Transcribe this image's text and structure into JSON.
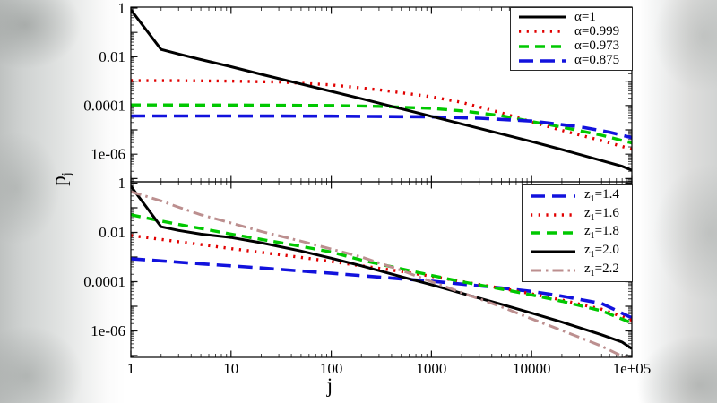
{
  "figure_title": "",
  "axes": {
    "xlabel": "j",
    "ylabel_main": "p",
    "ylabel_sub": "j",
    "x_scale": "log",
    "y_scale": "log",
    "x_tick_labels": [
      "1",
      "10",
      "100",
      "1000",
      "10000",
      "1e+05"
    ],
    "x_tick_values": [
      1,
      10,
      100,
      1000,
      10000,
      100000
    ],
    "y_tick_labels": [
      "1",
      "0.01",
      "0.0001",
      "1e-06"
    ],
    "y_tick_values": [
      1,
      0.01,
      0.0001,
      1e-06
    ]
  },
  "colors": {
    "black": "#000000",
    "red": "#e10000",
    "green": "#00c800",
    "blue": "#1212dd",
    "brown": "#bc8f8f"
  },
  "chart_data": [
    {
      "type": "line",
      "panel": "top",
      "x_scale": "log",
      "y_scale": "log",
      "xlim": [
        1,
        100000
      ],
      "ylim": [
        6e-08,
        1
      ],
      "grid": false,
      "legend_position": "upper right",
      "series": [
        {
          "id": "alpha-1",
          "label": {
            "sym": "α",
            "sub": "",
            "val": "=1"
          },
          "color": "#000000",
          "style": "solid",
          "width": 3,
          "zorder": 4,
          "points": [
            [
              1,
              0.85
            ],
            [
              2,
              0.02
            ],
            [
              3,
              0.013
            ],
            [
              5,
              0.0077
            ],
            [
              10,
              0.0039
            ],
            [
              20,
              0.0019
            ],
            [
              50,
              0.00076
            ],
            [
              100,
              0.00038
            ],
            [
              200,
              0.00019
            ],
            [
              500,
              7.4e-05
            ],
            [
              1000,
              3.6e-05
            ],
            [
              2000,
              1.75e-05
            ],
            [
              5000,
              6.8e-06
            ],
            [
              10000,
              3.3e-06
            ],
            [
              20000,
              1.55e-06
            ],
            [
              50000,
              5.5e-07
            ],
            [
              80000,
              3.2e-07
            ],
            [
              100000,
              2.2e-07
            ]
          ]
        },
        {
          "id": "alpha-0999",
          "label": {
            "sym": "α",
            "sub": "",
            "val": "=0.999"
          },
          "color": "#e10000",
          "style": "dotted",
          "width": 3.4,
          "zorder": 1,
          "points": [
            [
              1,
              0.00105
            ],
            [
              3,
              0.00104
            ],
            [
              10,
              0.001
            ],
            [
              30,
              0.00092
            ],
            [
              100,
              0.0007
            ],
            [
              300,
              0.00044
            ],
            [
              1000,
              0.00023
            ],
            [
              2000,
              0.000135
            ],
            [
              5000,
              5e-05
            ],
            [
              10000,
              2.1e-05
            ],
            [
              20000,
              9.5e-06
            ],
            [
              50000,
              3.6e-06
            ],
            [
              100000,
              1.6e-06
            ]
          ]
        },
        {
          "id": "alpha-0973",
          "label": {
            "sym": "α",
            "sub": "",
            "val": "=0.973"
          },
          "color": "#00c800",
          "style": "dashed",
          "width": 3.4,
          "zorder": 2,
          "points": [
            [
              1,
              0.000105
            ],
            [
              10,
              0.000104
            ],
            [
              100,
              0.0001
            ],
            [
              300,
              9.2e-05
            ],
            [
              1000,
              7.6e-05
            ],
            [
              2000,
              6e-05
            ],
            [
              5000,
              3.8e-05
            ],
            [
              10000,
              2.2e-05
            ],
            [
              20000,
              1.3e-05
            ],
            [
              50000,
              6e-06
            ],
            [
              100000,
              2.9e-06
            ]
          ]
        },
        {
          "id": "alpha-0875",
          "label": {
            "sym": "α",
            "sub": "",
            "val": "=0.875"
          },
          "color": "#1212dd",
          "style": "longdash",
          "width": 3.6,
          "zorder": 3,
          "points": [
            [
              1,
              3.7e-05
            ],
            [
              10,
              3.7e-05
            ],
            [
              100,
              3.65e-05
            ],
            [
              1000,
              3.4e-05
            ],
            [
              3000,
              3e-05
            ],
            [
              10000,
              2.3e-05
            ],
            [
              30000,
              1.35e-05
            ],
            [
              60000,
              8e-06
            ],
            [
              100000,
              4.8e-06
            ]
          ]
        }
      ]
    },
    {
      "type": "line",
      "panel": "bottom",
      "x_scale": "log",
      "y_scale": "log",
      "xlim": [
        1,
        100000
      ],
      "ylim": [
        6e-08,
        1
      ],
      "grid": false,
      "legend_position": "upper right",
      "series": [
        {
          "id": "z1-1.4",
          "label": {
            "sym": "z",
            "sub": "1",
            "val": "=1.4"
          },
          "color": "#1212dd",
          "style": "longdash",
          "width": 3.6,
          "zorder": 1,
          "points": [
            [
              1,
              0.00085
            ],
            [
              2,
              0.0007
            ],
            [
              5,
              0.00053
            ],
            [
              10,
              0.00044
            ],
            [
              20,
              0.00036
            ],
            [
              50,
              0.00027
            ],
            [
              100,
              0.00022
            ],
            [
              200,
              0.000175
            ],
            [
              500,
              0.00013
            ],
            [
              1000,
              0.000105
            ],
            [
              2000,
              8e-05
            ],
            [
              5000,
              5.5e-05
            ],
            [
              10000,
              4e-05
            ],
            [
              20000,
              2.6e-05
            ],
            [
              50000,
              1.3e-05
            ],
            [
              100000,
              3.4e-06
            ]
          ]
        },
        {
          "id": "z1-1.6",
          "label": {
            "sym": "z",
            "sub": "1",
            "val": "=1.6"
          },
          "color": "#e10000",
          "style": "dotted",
          "width": 3.4,
          "zorder": 2,
          "points": [
            [
              1,
              0.0075
            ],
            [
              2,
              0.0052
            ],
            [
              3,
              0.0042
            ],
            [
              5,
              0.0032
            ],
            [
              10,
              0.0022
            ],
            [
              20,
              0.00155
            ],
            [
              50,
              0.00097
            ],
            [
              100,
              0.00066
            ],
            [
              200,
              0.00044
            ],
            [
              500,
              0.00026
            ],
            [
              1000,
              0.000165
            ],
            [
              2000,
              0.000102
            ],
            [
              5000,
              5.4e-05
            ],
            [
              10000,
              3.2e-05
            ],
            [
              20000,
              1.8e-05
            ],
            [
              50000,
              7.6e-06
            ],
            [
              100000,
              2.7e-06
            ]
          ]
        },
        {
          "id": "z1-1.8",
          "label": {
            "sym": "z",
            "sub": "1",
            "val": "=1.8"
          },
          "color": "#00c800",
          "style": "dashed",
          "width": 3.4,
          "zorder": 3,
          "points": [
            [
              1,
              0.052
            ],
            [
              2,
              0.029
            ],
            [
              3,
              0.021
            ],
            [
              5,
              0.0145
            ],
            [
              10,
              0.0085
            ],
            [
              20,
              0.0052
            ],
            [
              50,
              0.0027
            ],
            [
              100,
              0.0016
            ],
            [
              200,
              0.00075
            ],
            [
              500,
              0.00033
            ],
            [
              1000,
              0.00018
            ],
            [
              2000,
              0.0001
            ],
            [
              5000,
              5e-05
            ],
            [
              10000,
              2.9e-05
            ],
            [
              20000,
              1.6e-05
            ],
            [
              50000,
              6.5e-06
            ],
            [
              100000,
              2.1e-06
            ]
          ]
        },
        {
          "id": "z1-2.0",
          "label": {
            "sym": "z",
            "sub": "1",
            "val": "=2.0"
          },
          "color": "#000000",
          "style": "solid",
          "width": 3,
          "zorder": 4,
          "points": [
            [
              1,
              0.75
            ],
            [
              2,
              0.017
            ],
            [
              3,
              0.012
            ],
            [
              5,
              0.0085
            ],
            [
              10,
              0.0062
            ],
            [
              20,
              0.0038
            ],
            [
              50,
              0.00175
            ],
            [
              100,
              0.0009
            ],
            [
              200,
              0.00044
            ],
            [
              500,
              0.00016
            ],
            [
              1000,
              7.5e-05
            ],
            [
              2000,
              3.4e-05
            ],
            [
              5000,
              1.2e-05
            ],
            [
              10000,
              5.3e-06
            ],
            [
              20000,
              2.3e-06
            ],
            [
              50000,
              7e-07
            ],
            [
              80000,
              3.5e-07
            ],
            [
              100000,
              1.9e-07
            ]
          ]
        },
        {
          "id": "z1-2.2",
          "label": {
            "sym": "z",
            "sub": "1",
            "val": "=2.2"
          },
          "color": "#bc8f8f",
          "style": "dashdot",
          "width": 3,
          "zorder": 5,
          "points": [
            [
              1,
              0.45
            ],
            [
              2,
              0.19
            ],
            [
              3,
              0.105
            ],
            [
              5,
              0.052
            ],
            [
              10,
              0.024
            ],
            [
              20,
              0.011
            ],
            [
              50,
              0.0044
            ],
            [
              100,
              0.0021
            ],
            [
              200,
              0.001
            ],
            [
              500,
              0.00029
            ],
            [
              1000,
              0.0001
            ],
            [
              2000,
              3.6e-05
            ],
            [
              5000,
              9.5e-06
            ],
            [
              10000,
              3.1e-06
            ],
            [
              20000,
              1.05e-06
            ],
            [
              50000,
              2.4e-07
            ],
            [
              100000,
              6e-08
            ]
          ]
        }
      ]
    }
  ]
}
